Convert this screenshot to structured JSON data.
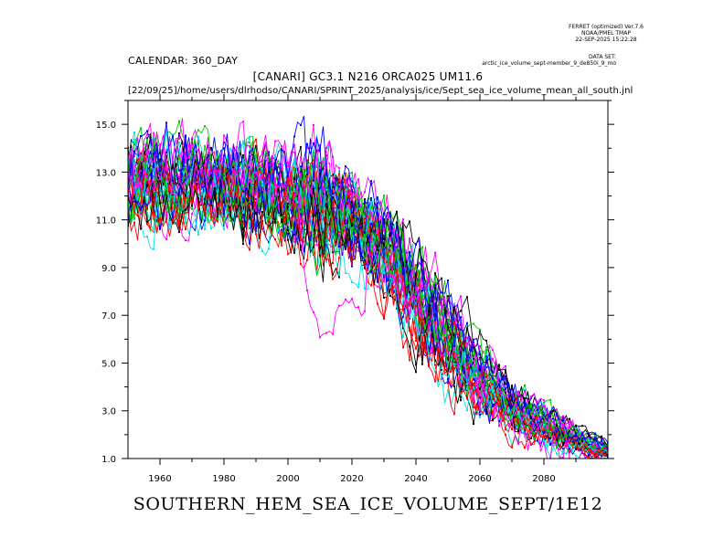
{
  "header": {
    "ferret_lines": [
      "FERRET (optimized) Ver.7.6",
      "NOAA/PMEL TMAP",
      "22-SEP-2025 15:22:28"
    ],
    "dataset_lines": [
      "DATA SET:",
      "arctic_ice_volume_sept-member_9_de850i_9_mo"
    ],
    "calendar": "CALENDAR: 360_DAY",
    "title": "[CANARI] GC3.1 N216 ORCA025 UM11.6",
    "subtitle": "[22/09/25]/home/users/dlrhodso/CANARI/SPRINT_2025/analysis/ice/Sept_sea_ice_volume_mean_all_south.jnl"
  },
  "chart_data": {
    "type": "line",
    "title": "[CANARI] GC3.1 N216 ORCA025 UM11.6",
    "xlabel": "SOUTHERN_HEM_SEA_ICE_VOLUME_SEPT/1E12",
    "ylabel": "",
    "xlim": [
      1950,
      2100
    ],
    "ylim": [
      1.0,
      16.0
    ],
    "x_ticks": [
      1960,
      1980,
      2000,
      2020,
      2040,
      2060,
      2080
    ],
    "x_tick_labels": [
      "1960",
      "1980",
      "2000",
      "2020",
      "2040",
      "2060",
      "2080"
    ],
    "y_ticks": [
      1.0,
      3.0,
      5.0,
      7.0,
      9.0,
      11.0,
      13.0,
      15.0
    ],
    "y_tick_labels": [
      "1.0",
      "3.0",
      "5.0",
      "7.0",
      "9.0",
      "11.0",
      "13.0",
      "15.0"
    ],
    "grid": false,
    "member_count": 40,
    "series_colors": [
      "#000000",
      "#ff0000",
      "#00cc00",
      "#0000ff",
      "#00e5e5",
      "#ff00ff"
    ],
    "ensemble_envelope": {
      "x": [
        1950,
        1960,
        1970,
        1980,
        1990,
        2000,
        2010,
        2020,
        2030,
        2040,
        2050,
        2060,
        2070,
        2080,
        2090,
        2100
      ],
      "mean": [
        12.5,
        12.6,
        12.6,
        12.5,
        12.4,
        12.0,
        11.6,
        11.0,
        9.8,
        8.0,
        6.2,
        4.4,
        3.2,
        2.4,
        1.8,
        1.3
      ],
      "low": [
        10.0,
        10.0,
        10.5,
        10.3,
        9.5,
        9.0,
        6.2,
        8.0,
        6.5,
        4.5,
        3.2,
        2.5,
        1.8,
        1.4,
        1.1,
        1.0
      ],
      "high": [
        15.8,
        15.8,
        15.8,
        15.8,
        15.5,
        14.5,
        13.8,
        13.2,
        12.0,
        10.5,
        8.5,
        6.5,
        4.8,
        3.6,
        2.6,
        1.8
      ]
    },
    "outlier_series": {
      "color": "#ff00ff",
      "x": [
        2004,
        2006,
        2008,
        2010,
        2012,
        2014,
        2016,
        2018,
        2020,
        2024
      ],
      "values": [
        10.5,
        8.0,
        7.0,
        6.3,
        6.2,
        6.5,
        7.2,
        7.5,
        7.8,
        7.0
      ]
    }
  }
}
